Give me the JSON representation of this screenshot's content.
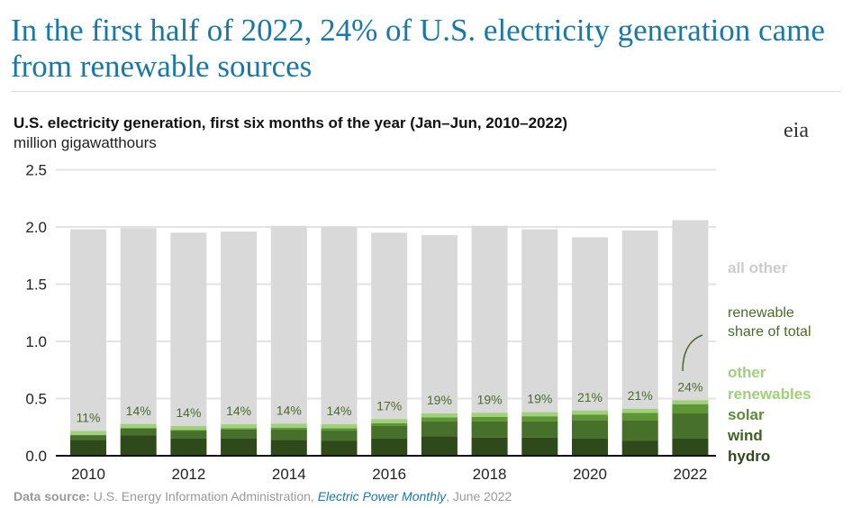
{
  "headline": "In the first half of 2022, 24% of U.S. electricity generation came from renewable sources",
  "logo": "eia",
  "source": {
    "label": "Data source:",
    "text": " U.S. Energy Information Administration, ",
    "pub": "Electric Power Monthly",
    "date": ", June 2022"
  },
  "chart_data": {
    "type": "bar",
    "title": "U.S. electricity generation, first six months of the year (Jan–Jun, 2010–2022)",
    "ylabel": "million gigawatthours",
    "ylim": [
      0,
      2.5
    ],
    "yticks": [
      "0.0",
      "0.5",
      "1.0",
      "1.5",
      "2.0",
      "2.5"
    ],
    "categories": [
      "2010",
      "2011",
      "2012",
      "2013",
      "2014",
      "2015",
      "2016",
      "2017",
      "2018",
      "2019",
      "2020",
      "2021",
      "2022"
    ],
    "xtick_labels": [
      "2010",
      "2012",
      "2014",
      "2016",
      "2018",
      "2020",
      "2022"
    ],
    "series": [
      {
        "name": "hydro",
        "color": "#2e4a1a",
        "values": [
          0.14,
          0.18,
          0.15,
          0.15,
          0.14,
          0.13,
          0.15,
          0.17,
          0.16,
          0.16,
          0.15,
          0.13,
          0.15
        ]
      },
      {
        "name": "wind",
        "color": "#47702a",
        "values": [
          0.04,
          0.06,
          0.07,
          0.08,
          0.09,
          0.09,
          0.11,
          0.13,
          0.14,
          0.14,
          0.16,
          0.18,
          0.22
        ]
      },
      {
        "name": "solar",
        "color": "#5e9636",
        "values": [
          0.001,
          0.002,
          0.005,
          0.01,
          0.015,
          0.02,
          0.025,
          0.035,
          0.04,
          0.045,
          0.05,
          0.065,
          0.08
        ]
      },
      {
        "name": "other renewables",
        "color": "#9fd07a",
        "values": [
          0.035,
          0.035,
          0.035,
          0.035,
          0.035,
          0.035,
          0.035,
          0.035,
          0.035,
          0.035,
          0.035,
          0.035,
          0.035
        ]
      }
    ],
    "totals": [
      1.98,
      1.99,
      1.95,
      1.96,
      2.01,
      2.0,
      1.95,
      1.93,
      2.01,
      1.98,
      1.91,
      1.97,
      2.06
    ],
    "all_other_color": "#d9d9d9",
    "renewable_share": [
      "11%",
      "14%",
      "14%",
      "14%",
      "14%",
      "14%",
      "17%",
      "19%",
      "19%",
      "19%",
      "21%",
      "21%",
      "24%"
    ],
    "legend": {
      "all_other": "all other",
      "share1": "renewable",
      "share2": "share of total",
      "other1": "other",
      "other2": "renewables",
      "solar": "solar",
      "wind": "wind",
      "hydro": "hydro"
    }
  }
}
